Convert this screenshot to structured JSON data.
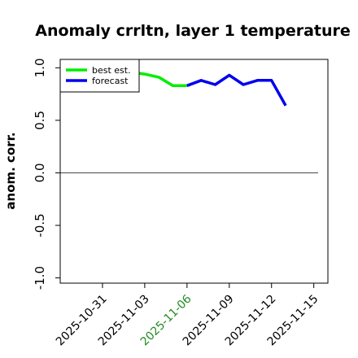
{
  "chart_data": {
    "type": "line",
    "title": "Anomaly crrltn, layer 1 temperature",
    "xlabel": "",
    "ylabel": "anom. corr.",
    "x_start": "2025-10-28",
    "xlim": [
      "2025-10-28",
      "2025-11-16"
    ],
    "ylim": [
      -1.05,
      1.08
    ],
    "yticks": [
      -1.0,
      -0.5,
      0.0,
      0.5,
      1.0
    ],
    "ytick_labels": [
      "-1.0",
      "-0.5",
      "0.0",
      "0.5",
      "1.0"
    ],
    "xticks": [
      "2025-10-31",
      "2025-11-03",
      "2025-11-06",
      "2025-11-09",
      "2025-11-12",
      "2025-11-15"
    ],
    "xtick_labels": [
      "2025-10-31",
      "2025-11-03",
      "2025-11-06",
      "2025-11-09",
      "2025-11-12",
      "2025-11-15"
    ],
    "highlighted_xtick": "2025-11-06",
    "highlight_color": "#228b22",
    "reference_line": {
      "y": 0.0,
      "color": "#555555"
    },
    "legend_position": "top-left",
    "grid": false,
    "series": [
      {
        "name": "best est.",
        "color": "#00ee00",
        "x": [
          "2025-11-02",
          "2025-11-03",
          "2025-11-04",
          "2025-11-05",
          "2025-11-06"
        ],
        "y": [
          0.96,
          0.94,
          0.91,
          0.83,
          0.83
        ]
      },
      {
        "name": "forecast",
        "color": "#0000ee",
        "x": [
          "2025-11-06",
          "2025-11-07",
          "2025-11-08",
          "2025-11-09",
          "2025-11-10",
          "2025-11-11",
          "2025-11-12",
          "2025-11-13"
        ],
        "y": [
          0.83,
          0.88,
          0.84,
          0.93,
          0.84,
          0.88,
          0.88,
          0.64
        ]
      }
    ]
  }
}
